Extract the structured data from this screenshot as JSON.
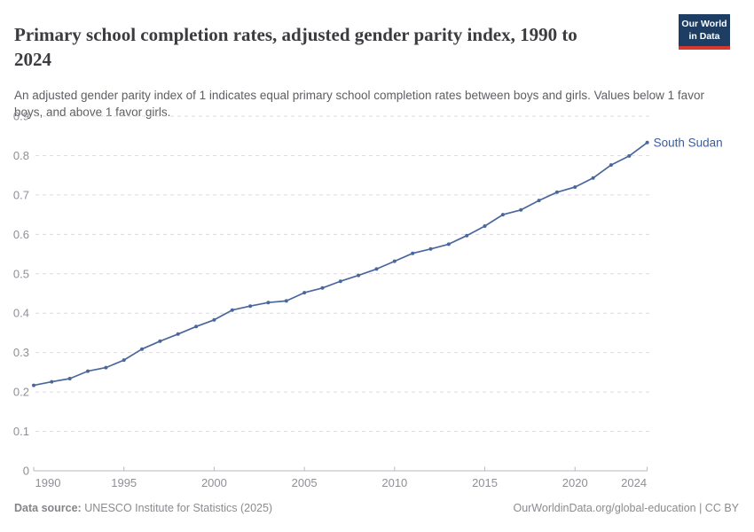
{
  "header": {
    "title": "Primary school completion rates, adjusted gender parity index, 1990 to 2024",
    "subtitle": "An adjusted gender parity index of 1 indicates equal primary school completion rates between boys and girls. Values below 1 favor boys, and above 1 favor girls."
  },
  "logo": {
    "line1": "Our World",
    "line2": "in Data",
    "bg_color": "#1d3d63",
    "accent_color": "#d6392f"
  },
  "chart_data": {
    "type": "line",
    "title": "Primary school completion rates, adjusted gender parity index, 1990 to 2024",
    "entity_label": "South Sudan",
    "x": [
      1990,
      1991,
      1992,
      1993,
      1994,
      1995,
      1996,
      1997,
      1998,
      1999,
      2000,
      2001,
      2002,
      2003,
      2004,
      2005,
      2006,
      2007,
      2008,
      2009,
      2010,
      2011,
      2012,
      2013,
      2014,
      2015,
      2016,
      2017,
      2018,
      2019,
      2020,
      2021,
      2022,
      2023,
      2024
    ],
    "values": [
      0.217,
      0.226,
      0.234,
      0.253,
      0.262,
      0.281,
      0.309,
      0.329,
      0.347,
      0.366,
      0.383,
      0.408,
      0.418,
      0.427,
      0.431,
      0.452,
      0.464,
      0.481,
      0.496,
      0.512,
      0.532,
      0.552,
      0.563,
      0.575,
      0.597,
      0.621,
      0.65,
      0.662,
      0.686,
      0.707,
      0.72,
      0.743,
      0.776,
      0.799,
      0.833
    ],
    "xticks": [
      1990,
      1995,
      2000,
      2005,
      2010,
      2015,
      2020,
      2024
    ],
    "yticks": [
      0,
      0.1,
      0.2,
      0.3,
      0.4,
      0.5,
      0.6,
      0.7,
      0.8,
      0.9
    ],
    "xlim": [
      1990,
      2024
    ],
    "ylim": [
      0,
      0.9
    ],
    "xlabel": "",
    "ylabel": "",
    "grid": "horizontal-dashed",
    "legend_position": "end-of-line-label",
    "line_color": "#4a679d",
    "label_color": "#3d5c96"
  },
  "footer": {
    "datasource_label": "Data source:",
    "datasource_value": " UNESCO Institute for Statistics (2025)",
    "credit": "OurWorldinData.org/global-education | CC BY"
  }
}
